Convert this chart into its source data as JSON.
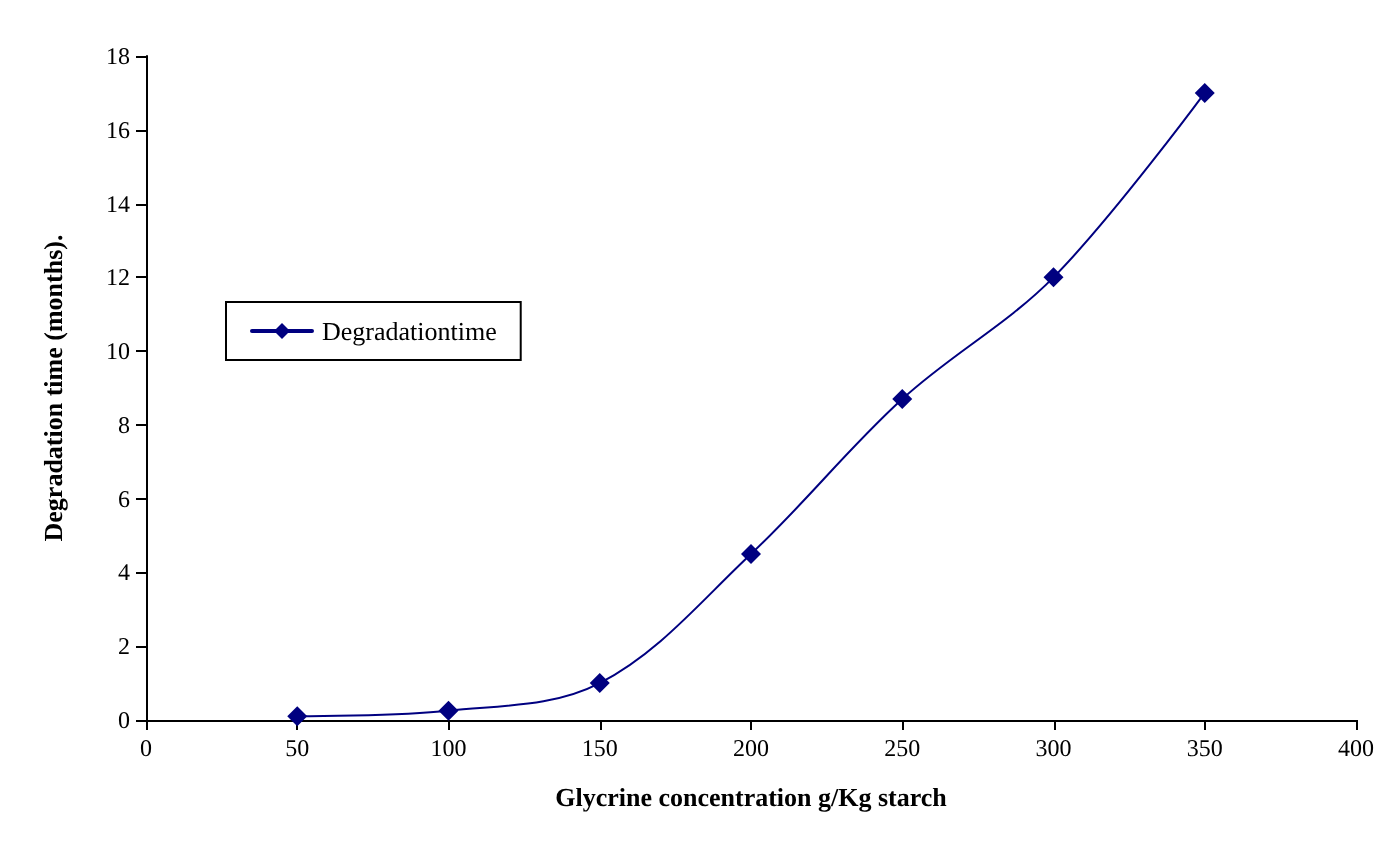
{
  "chart_data": {
    "type": "line",
    "xlabel": "Glycrine concentration g/Kg starch",
    "ylabel": "Degradation time (months).",
    "x": [
      50,
      100,
      150,
      200,
      250,
      300,
      350
    ],
    "series": [
      {
        "name": "Degradationtime",
        "color": "#000080",
        "values": [
          0.1,
          0.25,
          1,
          4.5,
          8.7,
          12,
          17
        ]
      }
    ],
    "xlim": [
      0,
      400
    ],
    "xticks": [
      0,
      50,
      100,
      150,
      200,
      250,
      300,
      350,
      400
    ],
    "ylim": [
      0,
      18
    ],
    "yticks": [
      0,
      2,
      4,
      6,
      8,
      10,
      12,
      14,
      16,
      18
    ],
    "grid": false,
    "legend": "left",
    "marker": "diamond",
    "line_style": "solid"
  }
}
